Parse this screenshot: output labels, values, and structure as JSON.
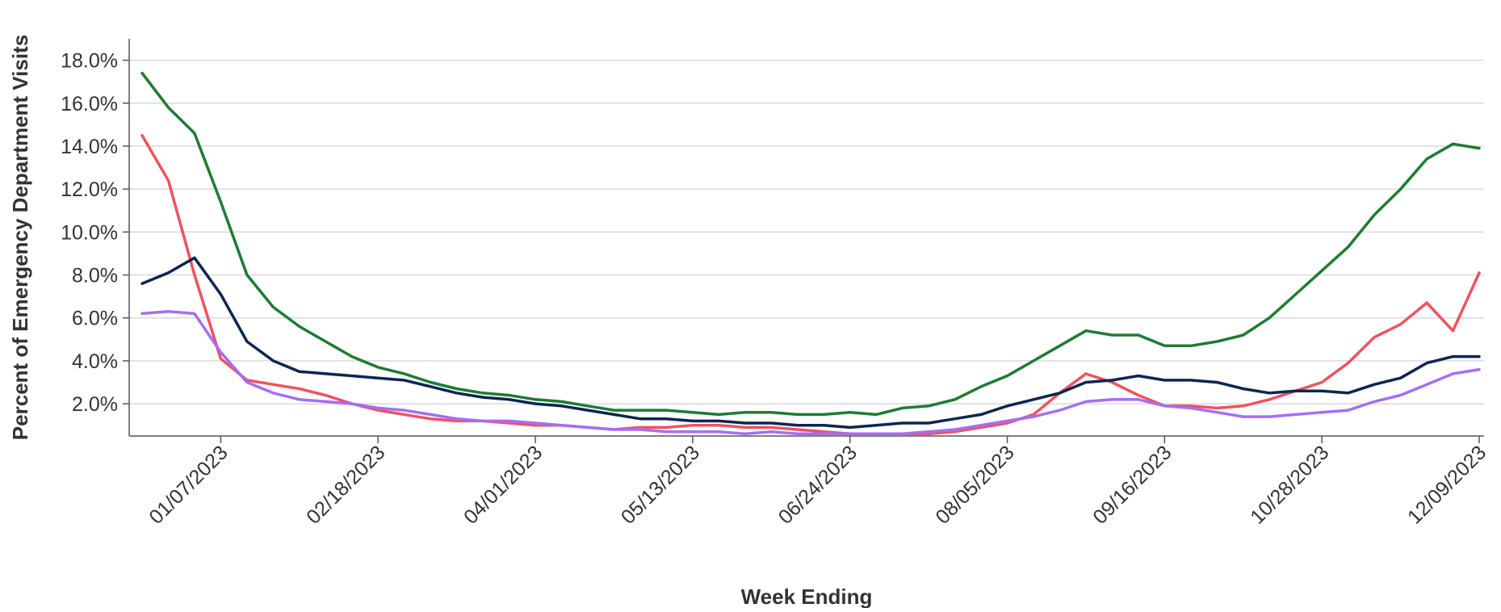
{
  "chart_data": {
    "type": "line",
    "xlabel": "Week Ending",
    "ylabel": "Percent of Emergency Department Visits",
    "ylim": [
      0.5,
      19.0
    ],
    "y_ticks": [
      2.0,
      4.0,
      6.0,
      8.0,
      10.0,
      12.0,
      14.0,
      16.0,
      18.0
    ],
    "y_tick_labels": [
      "2.0%",
      "4.0%",
      "6.0%",
      "8.0%",
      "10.0%",
      "12.0%",
      "14.0%",
      "16.0%",
      "18.0%"
    ],
    "x_tick_labels": [
      "01/07/2023",
      "02/18/2023",
      "04/01/2023",
      "05/13/2023",
      "06/24/2023",
      "08/05/2023",
      "09/16/2023",
      "10/28/2023",
      "12/09/2023"
    ],
    "x_tick_week_index": [
      3,
      9,
      15,
      21,
      27,
      33,
      39,
      45,
      51
    ],
    "x": [
      "12/17/2022",
      "12/24/2022",
      "12/31/2022",
      "01/07/2023",
      "01/14/2023",
      "01/21/2023",
      "01/28/2023",
      "02/04/2023",
      "02/11/2023",
      "02/18/2023",
      "02/25/2023",
      "03/04/2023",
      "03/11/2023",
      "03/18/2023",
      "03/25/2023",
      "04/01/2023",
      "04/08/2023",
      "04/15/2023",
      "04/22/2023",
      "04/29/2023",
      "05/06/2023",
      "05/13/2023",
      "05/20/2023",
      "05/27/2023",
      "06/03/2023",
      "06/10/2023",
      "06/17/2023",
      "06/24/2023",
      "07/01/2023",
      "07/08/2023",
      "07/15/2023",
      "07/22/2023",
      "07/29/2023",
      "08/05/2023",
      "08/12/2023",
      "08/19/2023",
      "08/26/2023",
      "09/02/2023",
      "09/09/2023",
      "09/16/2023",
      "09/23/2023",
      "09/30/2023",
      "10/07/2023",
      "10/14/2023",
      "10/21/2023",
      "10/28/2023",
      "11/04/2023",
      "11/11/2023",
      "11/18/2023",
      "11/25/2023",
      "12/02/2023",
      "12/09/2023"
    ],
    "grid": true,
    "series": [
      {
        "color": "#1e7b34",
        "values": [
          17.4,
          15.8,
          14.6,
          11.4,
          8.0,
          6.5,
          5.6,
          4.9,
          4.2,
          3.7,
          3.4,
          3.0,
          2.7,
          2.5,
          2.4,
          2.2,
          2.1,
          1.9,
          1.7,
          1.7,
          1.7,
          1.6,
          1.5,
          1.6,
          1.6,
          1.5,
          1.5,
          1.6,
          1.5,
          1.8,
          1.9,
          2.2,
          2.8,
          3.3,
          4.0,
          4.7,
          5.4,
          5.2,
          5.2,
          4.7,
          4.7,
          4.9,
          5.2,
          6.0,
          7.1,
          8.2,
          9.3,
          10.8,
          12.0,
          13.4,
          14.1,
          13.9
        ]
      },
      {
        "color": "#f0525e",
        "values": [
          14.5,
          12.4,
          8.0,
          4.1,
          3.1,
          2.9,
          2.7,
          2.4,
          2.0,
          1.7,
          1.5,
          1.3,
          1.2,
          1.2,
          1.1,
          1.0,
          1.0,
          0.9,
          0.8,
          0.9,
          0.9,
          1.0,
          1.0,
          0.9,
          0.9,
          0.8,
          0.7,
          0.6,
          0.6,
          0.6,
          0.6,
          0.7,
          0.9,
          1.1,
          1.5,
          2.5,
          3.4,
          3.0,
          2.4,
          1.9,
          1.9,
          1.8,
          1.9,
          2.2,
          2.6,
          3.0,
          3.9,
          5.1,
          5.7,
          6.7,
          5.4,
          8.1
        ]
      },
      {
        "color": "#0c2650",
        "values": [
          7.6,
          8.1,
          8.8,
          7.1,
          4.9,
          4.0,
          3.5,
          3.4,
          3.3,
          3.2,
          3.1,
          2.8,
          2.5,
          2.3,
          2.2,
          2.0,
          1.9,
          1.7,
          1.5,
          1.3,
          1.3,
          1.2,
          1.2,
          1.1,
          1.1,
          1.0,
          1.0,
          0.9,
          1.0,
          1.1,
          1.1,
          1.3,
          1.5,
          1.9,
          2.2,
          2.5,
          3.0,
          3.1,
          3.3,
          3.1,
          3.1,
          3.0,
          2.7,
          2.5,
          2.6,
          2.6,
          2.5,
          2.9,
          3.2,
          3.9,
          4.2,
          4.2
        ]
      },
      {
        "color": "#a46ef7",
        "values": [
          6.2,
          6.3,
          6.2,
          4.4,
          3.0,
          2.5,
          2.2,
          2.1,
          2.0,
          1.8,
          1.7,
          1.5,
          1.3,
          1.2,
          1.2,
          1.1,
          1.0,
          0.9,
          0.8,
          0.8,
          0.7,
          0.7,
          0.7,
          0.6,
          0.7,
          0.6,
          0.6,
          0.6,
          0.6,
          0.6,
          0.7,
          0.8,
          1.0,
          1.2,
          1.4,
          1.7,
          2.1,
          2.2,
          2.2,
          1.9,
          1.8,
          1.6,
          1.4,
          1.4,
          1.5,
          1.6,
          1.7,
          2.1,
          2.4,
          2.9,
          3.4,
          3.6
        ]
      }
    ]
  }
}
